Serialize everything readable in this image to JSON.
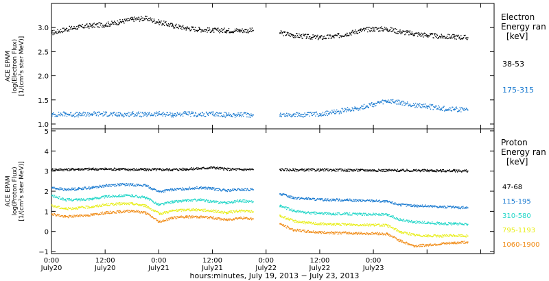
{
  "chart_data": [
    {
      "type": "scatter",
      "ylabel": [
        "ACE EPAM",
        "log(Electron Flux)",
        "[1/(cm²s ster MeV)]"
      ],
      "ylim": [
        0.9,
        3.5
      ],
      "yticks": [
        1.0,
        1.5,
        2.0,
        2.5,
        3.0
      ],
      "ytick_labels": [
        "1.0",
        "1.5",
        "2.0",
        "2.5",
        "3.0"
      ],
      "legend": {
        "title": "Electron",
        "subtitle": "Energy ran",
        "unit": "[keV]"
      },
      "series": [
        {
          "name": "38-53",
          "color": "#000000",
          "x": [
            0,
            3,
            6,
            9,
            12,
            15,
            18,
            21,
            24,
            27,
            30,
            33,
            36,
            39,
            42,
            45,
            48,
            51,
            54,
            57,
            60,
            63,
            66,
            69,
            72,
            75,
            78,
            81,
            84,
            87,
            90,
            93
          ],
          "y": [
            2.9,
            2.97,
            3.02,
            3.05,
            3.07,
            3.12,
            3.18,
            3.2,
            3.12,
            3.05,
            3.0,
            2.97,
            2.95,
            2.95,
            2.95,
            2.95,
            null,
            2.9,
            2.85,
            2.82,
            2.8,
            2.82,
            2.88,
            2.95,
            2.98,
            2.98,
            2.92,
            2.88,
            2.85,
            2.82,
            2.82,
            2.8
          ]
        },
        {
          "name": "175-315",
          "color": "#1a7ad0",
          "x": [
            0,
            3,
            6,
            9,
            12,
            15,
            18,
            21,
            24,
            27,
            30,
            33,
            36,
            39,
            42,
            45,
            48,
            51,
            54,
            57,
            60,
            63,
            66,
            69,
            72,
            75,
            78,
            81,
            84,
            87,
            90,
            93
          ],
          "y": [
            1.2,
            1.22,
            1.2,
            1.22,
            1.22,
            1.2,
            1.22,
            1.2,
            1.22,
            1.2,
            1.22,
            1.2,
            1.22,
            1.2,
            1.2,
            1.2,
            null,
            1.2,
            1.2,
            1.2,
            1.22,
            1.25,
            1.3,
            1.35,
            1.42,
            1.48,
            1.45,
            1.4,
            1.38,
            1.33,
            1.32,
            1.3
          ]
        }
      ]
    },
    {
      "type": "scatter",
      "ylabel": [
        "ACE EPAM",
        "log(Proton Flux)",
        "[1/(cm²s ster MeV)]"
      ],
      "ylim": [
        -1.1,
        5.1
      ],
      "yticks": [
        -1,
        0,
        1,
        2,
        3,
        4,
        5
      ],
      "ytick_labels": [
        "−1",
        "0",
        "1",
        "2",
        "3",
        "4",
        "5"
      ],
      "legend": {
        "title": "Proton",
        "subtitle": "Energy ran",
        "unit": "[keV]"
      },
      "series": [
        {
          "name": "47-68",
          "color": "#000000",
          "x": [
            0,
            3,
            6,
            9,
            12,
            15,
            18,
            21,
            24,
            27,
            30,
            33,
            36,
            39,
            42,
            45,
            48,
            51,
            54,
            57,
            60,
            63,
            66,
            69,
            72,
            75,
            78,
            81,
            84,
            87,
            90,
            93
          ],
          "y": [
            3.1,
            3.1,
            3.12,
            3.12,
            3.12,
            3.12,
            3.1,
            3.1,
            3.1,
            3.1,
            3.12,
            3.15,
            3.2,
            3.12,
            3.1,
            3.1,
            null,
            3.1,
            3.08,
            3.08,
            3.08,
            3.08,
            3.07,
            3.07,
            3.06,
            3.06,
            3.05,
            3.05,
            3.05,
            3.04,
            3.04,
            3.03
          ]
        },
        {
          "name": "115-195",
          "color": "#1a7ad0",
          "x": [
            0,
            3,
            6,
            9,
            12,
            15,
            18,
            21,
            24,
            27,
            30,
            33,
            36,
            39,
            42,
            45,
            48,
            51,
            54,
            57,
            60,
            63,
            66,
            69,
            72,
            75,
            78,
            81,
            84,
            87,
            90,
            93
          ],
          "y": [
            2.2,
            2.1,
            2.15,
            2.2,
            2.3,
            2.35,
            2.35,
            2.3,
            2.0,
            2.1,
            2.15,
            2.2,
            2.15,
            2.05,
            2.1,
            2.1,
            null,
            1.9,
            1.7,
            1.65,
            1.6,
            1.6,
            1.58,
            1.55,
            1.55,
            1.5,
            1.35,
            1.3,
            1.28,
            1.25,
            1.22,
            1.2
          ]
        },
        {
          "name": "310-580",
          "color": "#22d6c8",
          "x": [
            0,
            3,
            6,
            9,
            12,
            15,
            18,
            21,
            24,
            27,
            30,
            33,
            36,
            39,
            42,
            45,
            48,
            51,
            54,
            57,
            60,
            63,
            66,
            69,
            72,
            75,
            78,
            81,
            84,
            87,
            90,
            93
          ],
          "y": [
            1.8,
            1.6,
            1.6,
            1.65,
            1.75,
            1.8,
            1.8,
            1.7,
            1.35,
            1.5,
            1.55,
            1.6,
            1.5,
            1.45,
            1.55,
            1.5,
            null,
            1.3,
            1.05,
            0.95,
            0.92,
            0.9,
            0.9,
            0.88,
            0.88,
            0.85,
            0.6,
            0.5,
            0.45,
            0.42,
            0.4,
            0.38
          ]
        },
        {
          "name": "795-1193",
          "color": "#e8ee1a",
          "x": [
            0,
            3,
            6,
            9,
            12,
            15,
            18,
            21,
            24,
            27,
            30,
            33,
            36,
            39,
            42,
            45,
            48,
            51,
            54,
            57,
            60,
            63,
            66,
            69,
            72,
            75,
            78,
            81,
            84,
            87,
            90,
            93
          ],
          "y": [
            1.3,
            1.15,
            1.2,
            1.25,
            1.35,
            1.4,
            1.4,
            1.3,
            0.9,
            1.05,
            1.1,
            1.1,
            1.05,
            0.95,
            1.05,
            1.0,
            null,
            0.8,
            0.55,
            0.45,
            0.4,
            0.38,
            0.37,
            0.35,
            0.35,
            0.32,
            0.0,
            -0.15,
            -0.2,
            -0.2,
            -0.18,
            -0.2
          ]
        },
        {
          "name": "1060-1900",
          "color": "#f08a14",
          "x": [
            0,
            3,
            6,
            9,
            12,
            15,
            18,
            21,
            24,
            27,
            30,
            33,
            36,
            39,
            42,
            45,
            48,
            51,
            54,
            57,
            60,
            63,
            66,
            69,
            72,
            75,
            78,
            81,
            84,
            87,
            90,
            93
          ],
          "y": [
            0.9,
            0.75,
            0.8,
            0.85,
            0.95,
            1.0,
            1.05,
            0.95,
            0.5,
            0.7,
            0.75,
            0.75,
            0.7,
            0.6,
            0.7,
            0.65,
            null,
            0.4,
            0.1,
            0.02,
            -0.02,
            -0.05,
            -0.05,
            -0.08,
            -0.08,
            -0.1,
            -0.45,
            -0.7,
            -0.65,
            -0.6,
            -0.55,
            -0.5
          ]
        }
      ]
    }
  ],
  "x_axis": {
    "range_hours": [
      0,
      99
    ],
    "ticks_hours": [
      0,
      12,
      24,
      36,
      48,
      60,
      72,
      84,
      96
    ],
    "tick_labels": [
      [
        "0:00",
        "July20"
      ],
      [
        "12:00",
        "July20"
      ],
      [
        "0:00",
        "July21"
      ],
      [
        "12:00",
        "July21"
      ],
      [
        "0:00",
        "July22"
      ],
      [
        "12:00",
        "July22"
      ],
      [
        "0:00",
        "July23"
      ]
    ],
    "label": "hours:minutes, July 19, 2013 − July 23, 2013"
  }
}
